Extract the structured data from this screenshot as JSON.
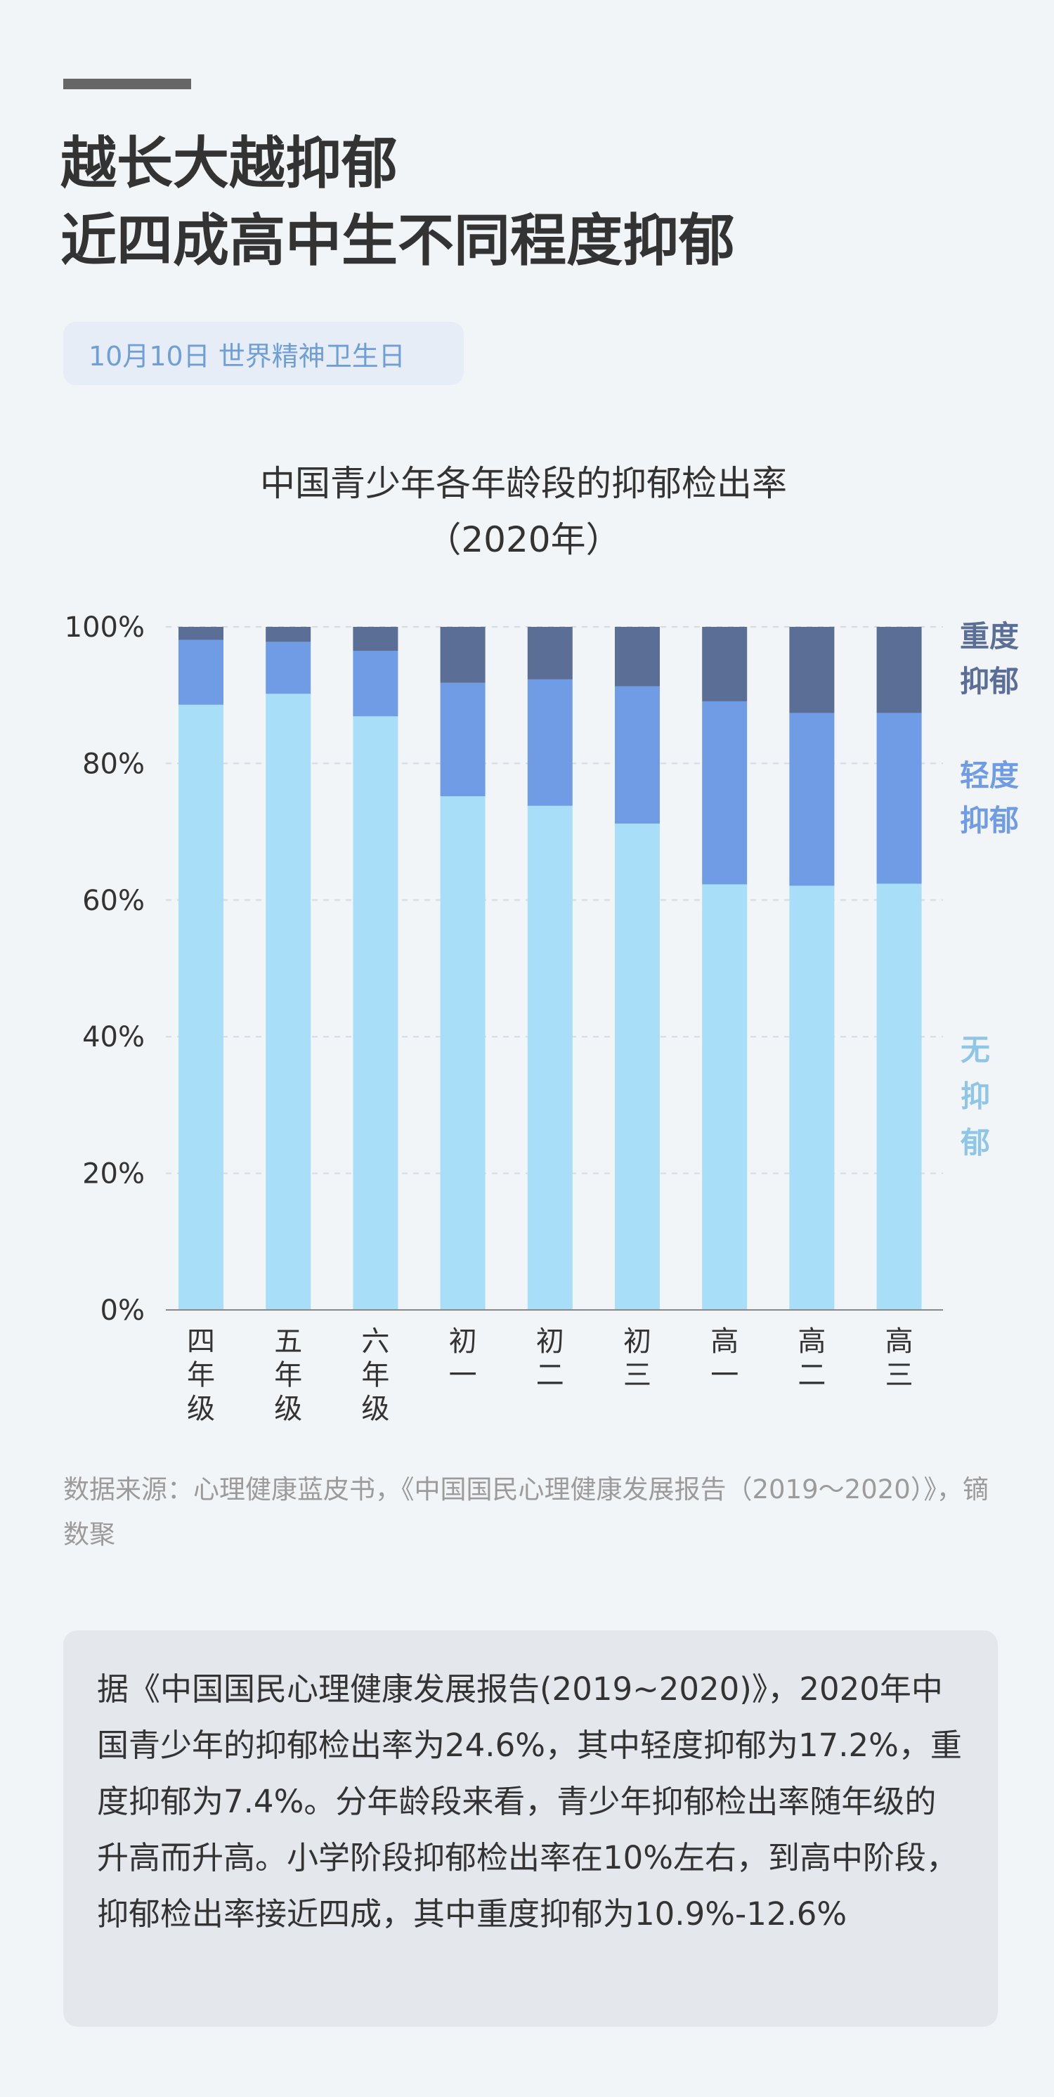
{
  "header": {
    "title_line1": "越长大越抑郁",
    "title_line2": "近四成高中生不同程度抑郁",
    "date_tag": "10月10日 世界精神卫生日"
  },
  "chart_title": {
    "line1": "中国青少年各年龄段的抑郁检出率",
    "line2": "（2020年）"
  },
  "chart_data": {
    "type": "bar",
    "stacked": true,
    "categories": [
      "四年级",
      "五年级",
      "六年级",
      "初一",
      "初二",
      "初三",
      "高一",
      "高二",
      "高三"
    ],
    "series": [
      {
        "name": "无抑郁",
        "color": "#a8def8",
        "values": [
          88.6,
          90.2,
          86.9,
          75.2,
          73.8,
          71.2,
          62.3,
          62.1,
          62.4
        ]
      },
      {
        "name": "轻度抑郁",
        "color": "#6f9ce5",
        "values": [
          9.5,
          7.6,
          9.6,
          16.6,
          18.5,
          20.1,
          26.8,
          25.3,
          25.0
        ]
      },
      {
        "name": "重度抑郁",
        "color": "#5b6e96",
        "values": [
          1.9,
          2.2,
          3.5,
          8.2,
          7.7,
          8.7,
          10.9,
          12.6,
          12.6
        ]
      }
    ],
    "y_ticks": [
      "0%",
      "20%",
      "40%",
      "60%",
      "80%",
      "100%"
    ],
    "ylim": [
      0,
      100
    ],
    "grid": true,
    "legend": "right, labels beside the last bar"
  },
  "source": "数据来源：心理健康蓝皮书，《中国国民心理健康发展报告（2019～2020）》，镝数聚",
  "summary": "据《中国国民心理健康发展报告(2019~2020)》，2020年中国青少年的抑郁检出率为24.6%，其中轻度抑郁为17.2%，重度抑郁为7.4%。分年龄段来看，青少年抑郁检出率随年级的升高而升高。小学阶段抑郁检出率在10%左右，到高中阶段，抑郁检出率接近四成，其中重度抑郁为10.9%-12.6%"
}
